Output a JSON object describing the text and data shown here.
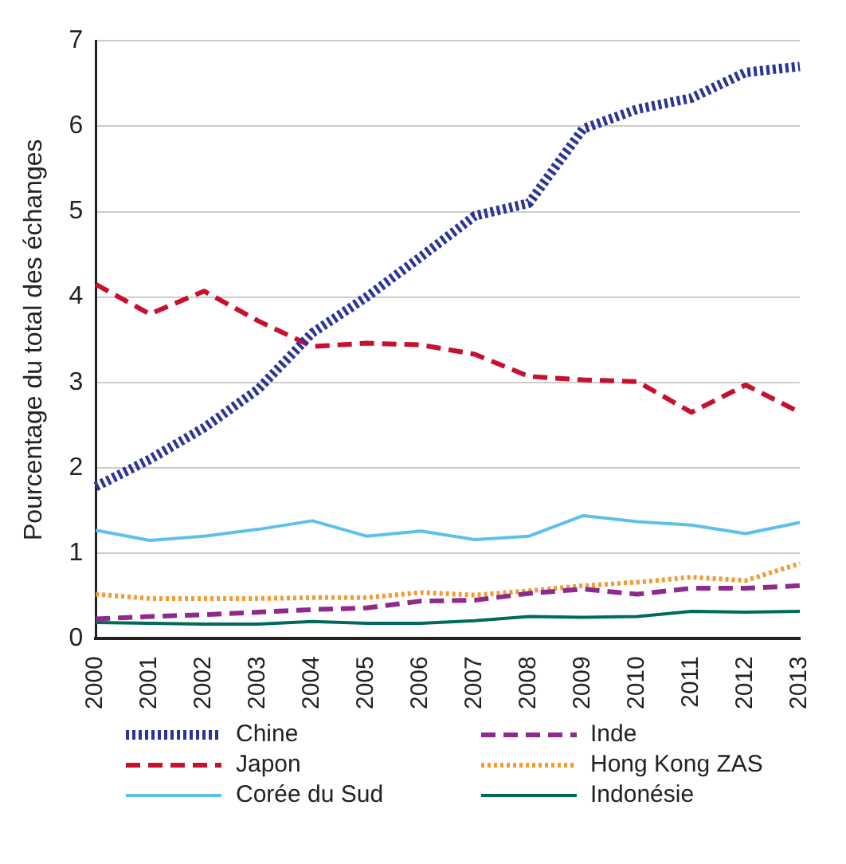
{
  "chart_data": {
    "type": "line",
    "ylabel": "Pourcentage du total des échanges",
    "categories": [
      "2000",
      "2001",
      "2002",
      "2003",
      "2004",
      "2005",
      "2006",
      "2007",
      "2008",
      "2009",
      "2010",
      "2011",
      "2012",
      "2013"
    ],
    "ylim": [
      0,
      7
    ],
    "yticks": [
      0,
      1,
      2,
      3,
      4,
      5,
      6,
      7
    ],
    "grid": "y",
    "legend": "bottom",
    "marker": "none",
    "series": [
      {
        "name": "Chine",
        "color": "#2b3594",
        "line_style": "dotted",
        "values": [
          1.78,
          2.1,
          2.47,
          2.92,
          3.58,
          4.0,
          4.47,
          4.95,
          5.1,
          5.97,
          6.2,
          6.33,
          6.63,
          6.7
        ]
      },
      {
        "name": "Japon",
        "color": "#c8102e",
        "line_style": "dashed",
        "values": [
          4.15,
          3.8,
          4.07,
          3.72,
          3.42,
          3.46,
          3.44,
          3.33,
          3.07,
          3.03,
          3.01,
          2.65,
          2.97,
          2.65
        ]
      },
      {
        "name": "Corée du Sud",
        "color": "#5bc0eb",
        "line_style": "solid",
        "values": [
          1.27,
          1.15,
          1.2,
          1.28,
          1.38,
          1.2,
          1.26,
          1.16,
          1.2,
          1.44,
          1.37,
          1.33,
          1.23,
          1.36
        ]
      },
      {
        "name": "Inde",
        "color": "#8e2a8e",
        "line_style": "dashed",
        "values": [
          0.23,
          0.26,
          0.28,
          0.31,
          0.34,
          0.36,
          0.44,
          0.45,
          0.53,
          0.58,
          0.52,
          0.59,
          0.59,
          0.62
        ]
      },
      {
        "name": "Hong Kong ZAS",
        "color": "#f39c34",
        "line_style": "dotted",
        "values": [
          0.52,
          0.47,
          0.47,
          0.47,
          0.48,
          0.48,
          0.54,
          0.51,
          0.56,
          0.62,
          0.66,
          0.72,
          0.68,
          0.88
        ]
      },
      {
        "name": "Indonésie",
        "color": "#006b5a",
        "line_style": "solid",
        "values": [
          0.19,
          0.18,
          0.17,
          0.17,
          0.2,
          0.18,
          0.18,
          0.21,
          0.26,
          0.25,
          0.26,
          0.32,
          0.31,
          0.32
        ]
      }
    ]
  }
}
